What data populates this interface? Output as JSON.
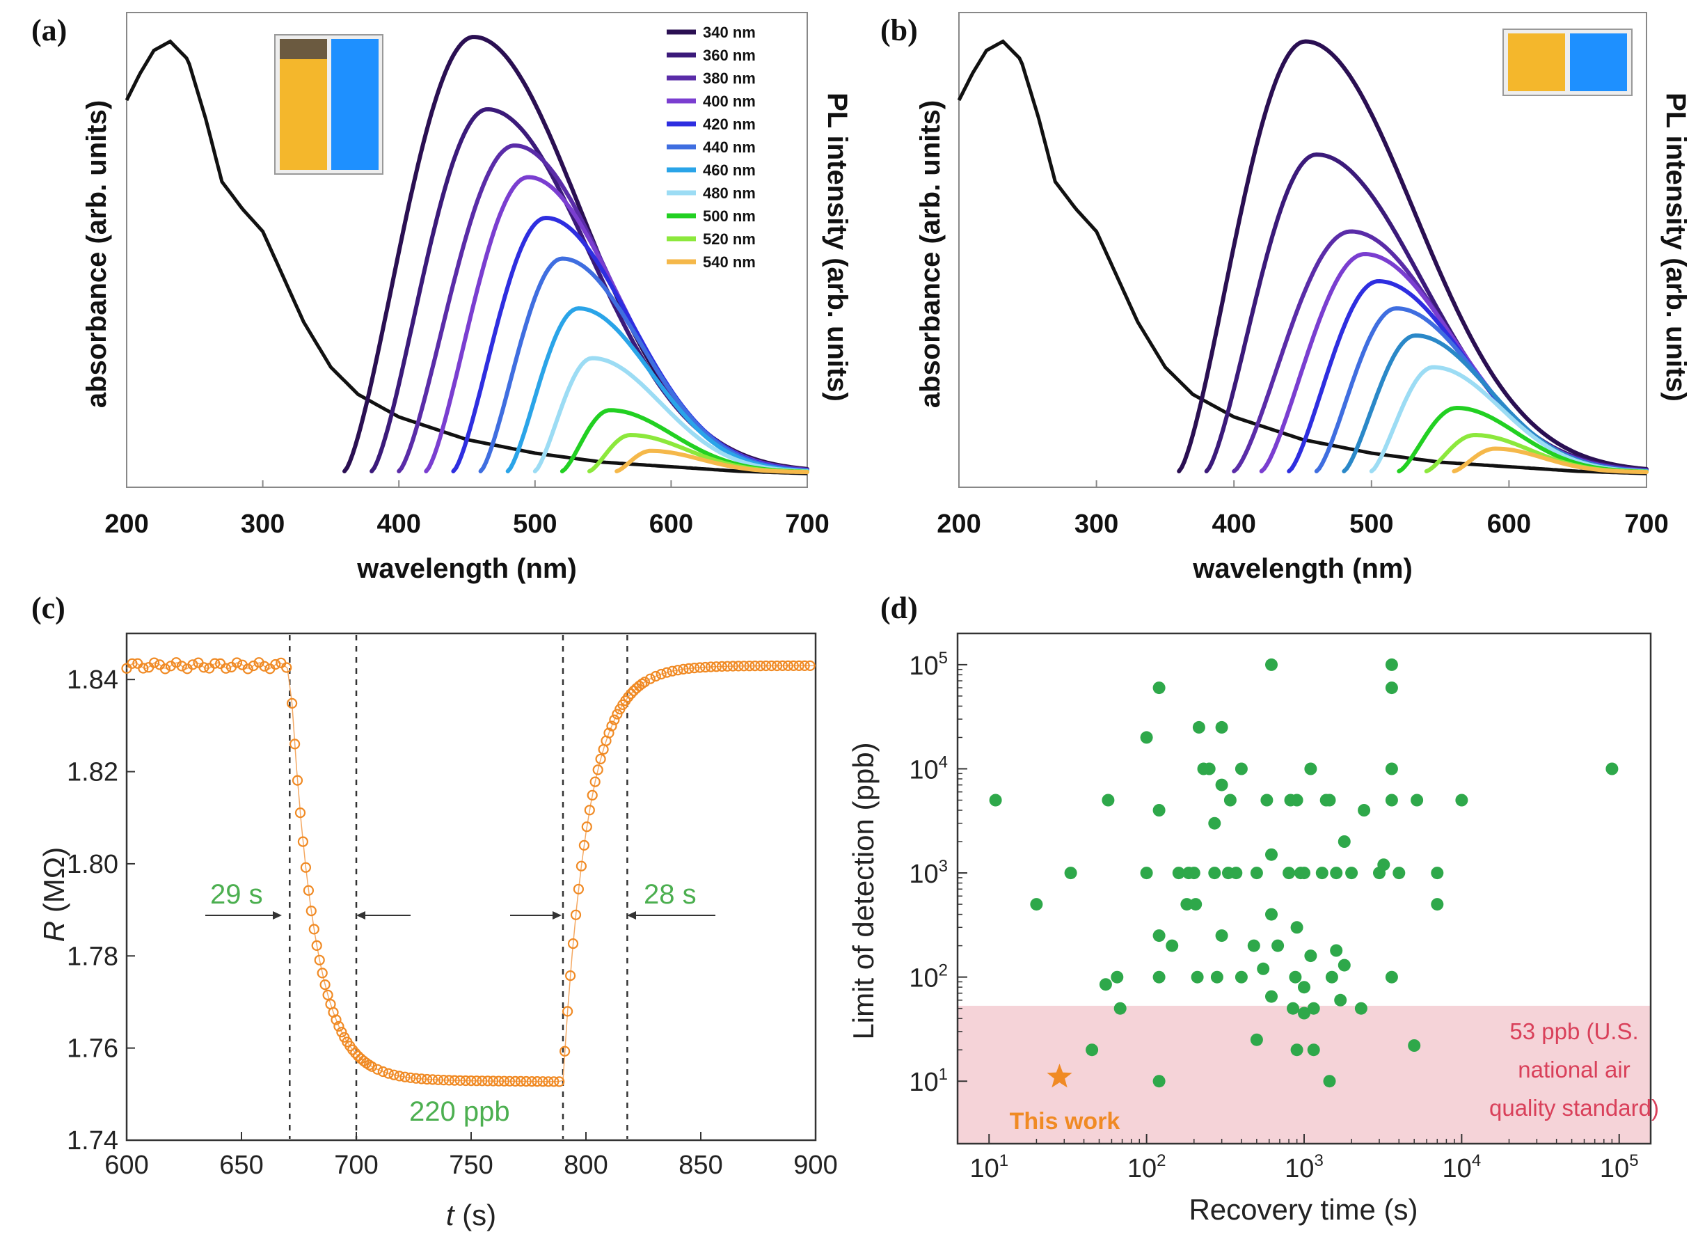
{
  "chart_data": [
    {
      "panel": "(a)",
      "type": "line",
      "xlabel": "wavelength (nm)",
      "ylabel_left": "absorbance (arb. units)",
      "ylabel_right": "PL intensity (arb. units)",
      "xlim": [
        200,
        700
      ],
      "xticks": [
        "200",
        "300",
        "400",
        "500",
        "600",
        "700"
      ],
      "absorbance": {
        "x": [
          200,
          210,
          220,
          232,
          245,
          258,
          270,
          285,
          300,
          315,
          330,
          350,
          370,
          400,
          450,
          500,
          550,
          600,
          650,
          700
        ],
        "y": [
          0.84,
          0.9,
          0.95,
          0.97,
          0.93,
          0.8,
          0.66,
          0.6,
          0.55,
          0.45,
          0.35,
          0.25,
          0.19,
          0.14,
          0.09,
          0.06,
          0.04,
          0.03,
          0.02,
          0.015
        ]
      },
      "legend": [
        "340 nm",
        "360 nm",
        "380 nm",
        "400 nm",
        "420 nm",
        "440 nm",
        "460 nm",
        "480 nm",
        "500 nm",
        "520 nm",
        "540 nm"
      ],
      "series": [
        {
          "name": "340 nm",
          "color": "#2a0f52",
          "start": 360,
          "peak_x": 455,
          "peak": 0.98
        },
        {
          "name": "360 nm",
          "color": "#3b1a7a",
          "start": 380,
          "peak_x": 465,
          "peak": 0.82
        },
        {
          "name": "380 nm",
          "color": "#5a2ca8",
          "start": 400,
          "peak_x": 485,
          "peak": 0.74
        },
        {
          "name": "400 nm",
          "color": "#7a3ed0",
          "start": 420,
          "peak_x": 495,
          "peak": 0.67
        },
        {
          "name": "420 nm",
          "color": "#2e2ee0",
          "start": 440,
          "peak_x": 508,
          "peak": 0.58
        },
        {
          "name": "440 nm",
          "color": "#3f6ee0",
          "start": 460,
          "peak_x": 520,
          "peak": 0.49
        },
        {
          "name": "460 nm",
          "color": "#2aa4e8",
          "start": 480,
          "peak_x": 532,
          "peak": 0.38
        },
        {
          "name": "480 nm",
          "color": "#9cdcf4",
          "start": 500,
          "peak_x": 542,
          "peak": 0.27
        },
        {
          "name": "500 nm",
          "color": "#22d022",
          "start": 520,
          "peak_x": 555,
          "peak": 0.155
        },
        {
          "name": "520 nm",
          "color": "#8ce83c",
          "start": 540,
          "peak_x": 570,
          "peak": 0.1
        },
        {
          "name": "540 nm",
          "color": "#f5b84a",
          "start": 560,
          "peak_x": 585,
          "peak": 0.065
        }
      ],
      "inset_colors": [
        "#f4b72c",
        "#1e90ff"
      ]
    },
    {
      "panel": "(b)",
      "type": "line",
      "xlabel": "wavelength (nm)",
      "ylabel_left": "absorbance (arb. units)",
      "ylabel_right": "PL intensity (arb. units)",
      "xlim": [
        200,
        700
      ],
      "xticks": [
        "200",
        "300",
        "400",
        "500",
        "600",
        "700"
      ],
      "series": [
        {
          "name": "340 nm",
          "color": "#2a0f52",
          "start": 360,
          "peak_x": 452,
          "peak": 0.97
        },
        {
          "name": "360 nm",
          "color": "#3b1a7a",
          "start": 380,
          "peak_x": 460,
          "peak": 0.72
        },
        {
          "name": "380 nm",
          "color": "#5a2ca8",
          "start": 400,
          "peak_x": 485,
          "peak": 0.55
        },
        {
          "name": "400 nm",
          "color": "#7a3ed0",
          "start": 420,
          "peak_x": 495,
          "peak": 0.5
        },
        {
          "name": "420 nm",
          "color": "#2e2ee0",
          "start": 440,
          "peak_x": 505,
          "peak": 0.44
        },
        {
          "name": "440 nm",
          "color": "#3f6ee0",
          "start": 460,
          "peak_x": 518,
          "peak": 0.38
        },
        {
          "name": "460 nm",
          "color": "#2a88c8",
          "start": 480,
          "peak_x": 532,
          "peak": 0.32
        },
        {
          "name": "480 nm",
          "color": "#9cdcf4",
          "start": 500,
          "peak_x": 545,
          "peak": 0.25
        },
        {
          "name": "500 nm",
          "color": "#22d022",
          "start": 520,
          "peak_x": 562,
          "peak": 0.16
        },
        {
          "name": "520 nm",
          "color": "#8ce83c",
          "start": 540,
          "peak_x": 575,
          "peak": 0.1
        },
        {
          "name": "540 nm",
          "color": "#f5b84a",
          "start": 560,
          "peak_x": 590,
          "peak": 0.07
        }
      ],
      "inset_colors": [
        "#f4b72c",
        "#1e90ff"
      ]
    },
    {
      "panel": "(c)",
      "type": "scatter",
      "xlabel_var": "t",
      "xlabel_unit": " (s)",
      "ylabel_var": "R",
      "ylabel_unit": " (MΩ)",
      "xlim": [
        600,
        900
      ],
      "ylim": [
        1.74,
        1.85
      ],
      "xticks": [
        "600",
        "650",
        "700",
        "750",
        "800",
        "850",
        "900"
      ],
      "yticks": [
        "1.74",
        "1.76",
        "1.78",
        "1.80",
        "1.82",
        "1.84"
      ],
      "markers": [
        671,
        700,
        790,
        818
      ],
      "baseline_R": 1.843,
      "exposed_R": 1.753,
      "gas_on": 671,
      "gas_off": 790,
      "response_time": "29 s",
      "recovery_time": "28 s",
      "concentration": "220 ppb"
    },
    {
      "panel": "(d)",
      "type": "scatter",
      "xscale": "log",
      "yscale": "log",
      "xlabel": "Recovery time (s)",
      "ylabel": "Limit of detection (ppb)",
      "xlim_log10": [
        0.8,
        5.2
      ],
      "ylim_log10": [
        0.4,
        5.3
      ],
      "xticks_log10": [
        1,
        2,
        3,
        4,
        5
      ],
      "yticks_log10": [
        1,
        2,
        3,
        4,
        5
      ],
      "standard_ppb": 53,
      "standard_label": [
        "53 ppb (U.S.",
        "national air",
        "quality standard)"
      ],
      "this_work": {
        "label": "This work",
        "recovery_s": 28,
        "lod_ppb": 11
      },
      "points": [
        [
          11,
          5000
        ],
        [
          20,
          500
        ],
        [
          33,
          1000
        ],
        [
          45,
          20
        ],
        [
          55,
          85
        ],
        [
          57,
          5000
        ],
        [
          65,
          100
        ],
        [
          68,
          50
        ],
        [
          100,
          1000
        ],
        [
          100,
          20000
        ],
        [
          120,
          60000
        ],
        [
          120,
          4000
        ],
        [
          120,
          250
        ],
        [
          120,
          100
        ],
        [
          120,
          10
        ],
        [
          145,
          200
        ],
        [
          160,
          1000
        ],
        [
          180,
          500
        ],
        [
          185,
          1000
        ],
        [
          200,
          1000
        ],
        [
          205,
          500
        ],
        [
          210,
          100
        ],
        [
          215,
          25000
        ],
        [
          230,
          10000
        ],
        [
          250,
          10000
        ],
        [
          270,
          1000
        ],
        [
          270,
          3000
        ],
        [
          280,
          100
        ],
        [
          300,
          25000
        ],
        [
          300,
          7000
        ],
        [
          300,
          250
        ],
        [
          330,
          1000
        ],
        [
          340,
          5000
        ],
        [
          370,
          1000
        ],
        [
          400,
          100
        ],
        [
          400,
          10000
        ],
        [
          480,
          200
        ],
        [
          500,
          1000
        ],
        [
          500,
          25
        ],
        [
          550,
          120
        ],
        [
          580,
          5000
        ],
        [
          620,
          100000
        ],
        [
          620,
          1500
        ],
        [
          620,
          400
        ],
        [
          620,
          65
        ],
        [
          680,
          200
        ],
        [
          800,
          1000
        ],
        [
          820,
          5000
        ],
        [
          850,
          50
        ],
        [
          880,
          100
        ],
        [
          900,
          300
        ],
        [
          900,
          5000
        ],
        [
          900,
          20
        ],
        [
          950,
          1000
        ],
        [
          1000,
          80
        ],
        [
          1000,
          45
        ],
        [
          1000,
          1000
        ],
        [
          1100,
          10000
        ],
        [
          1100,
          160
        ],
        [
          1150,
          20
        ],
        [
          1150,
          50
        ],
        [
          1300,
          1000
        ],
        [
          1380,
          5000
        ],
        [
          1450,
          10
        ],
        [
          1450,
          5000
        ],
        [
          1500,
          100
        ],
        [
          1600,
          1000
        ],
        [
          1600,
          180
        ],
        [
          1700,
          60
        ],
        [
          1800,
          2000
        ],
        [
          1800,
          130
        ],
        [
          2000,
          1000
        ],
        [
          2300,
          50
        ],
        [
          2400,
          4000
        ],
        [
          3000,
          1000
        ],
        [
          3200,
          1200
        ],
        [
          3600,
          100000
        ],
        [
          3600,
          60000
        ],
        [
          3600,
          10000
        ],
        [
          3600,
          5000
        ],
        [
          3600,
          100
        ],
        [
          4000,
          1000
        ],
        [
          5000,
          22
        ],
        [
          5200,
          5000
        ],
        [
          7000,
          1000
        ],
        [
          7000,
          500
        ],
        [
          10000,
          5000
        ],
        [
          90000,
          10000
        ]
      ]
    }
  ]
}
